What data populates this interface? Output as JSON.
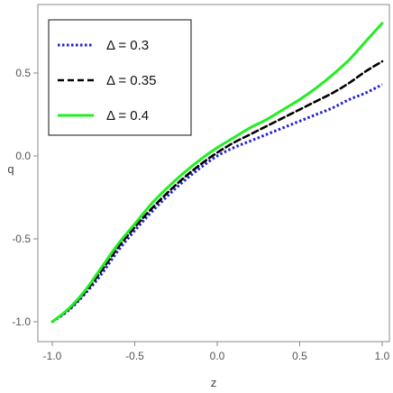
{
  "chart_data": {
    "type": "line",
    "xlabel": "z",
    "ylabel": "q",
    "xlim": [
      -1.0,
      1.0
    ],
    "ylim": [
      -1.1,
      0.85
    ],
    "x_ticks": [
      -1.0,
      -0.5,
      0.0,
      0.5,
      1.0
    ],
    "x_tick_labels": [
      "-1.0",
      "-0.5",
      "0.0",
      "0.5",
      "1.0"
    ],
    "y_ticks": [
      -1.0,
      -0.5,
      0.0,
      0.5
    ],
    "y_tick_labels": [
      "-1.0",
      "-0.5",
      "0.0",
      "0.5"
    ],
    "grid": false,
    "legend_position": "top-left",
    "x": [
      -1.0,
      -0.9,
      -0.8,
      -0.7,
      -0.6,
      -0.5,
      -0.4,
      -0.3,
      -0.2,
      -0.1,
      0.0,
      0.1,
      0.2,
      0.3,
      0.4,
      0.5,
      0.6,
      0.7,
      0.8,
      0.9,
      1.0
    ],
    "series": [
      {
        "name": "Δ = 0.3",
        "color": "#1f1fd6",
        "dash": "dotted",
        "values": [
          -1.0,
          -0.93,
          -0.83,
          -0.71,
          -0.57,
          -0.45,
          -0.34,
          -0.24,
          -0.15,
          -0.07,
          0.0,
          0.05,
          0.09,
          0.13,
          0.17,
          0.21,
          0.25,
          0.29,
          0.34,
          0.38,
          0.43
        ]
      },
      {
        "name": "Δ = 0.35",
        "color": "#000000",
        "dash": "dashed",
        "values": [
          -1.0,
          -0.925,
          -0.82,
          -0.69,
          -0.55,
          -0.43,
          -0.32,
          -0.22,
          -0.13,
          -0.05,
          0.02,
          0.08,
          0.13,
          0.18,
          0.23,
          0.28,
          0.33,
          0.38,
          0.44,
          0.51,
          0.57
        ]
      },
      {
        "name": "Δ = 0.4",
        "color": "#22ee22",
        "dash": "solid",
        "values": [
          -1.0,
          -0.92,
          -0.81,
          -0.67,
          -0.53,
          -0.41,
          -0.29,
          -0.19,
          -0.1,
          -0.02,
          0.05,
          0.11,
          0.17,
          0.22,
          0.28,
          0.34,
          0.41,
          0.49,
          0.58,
          0.69,
          0.8
        ]
      }
    ]
  }
}
